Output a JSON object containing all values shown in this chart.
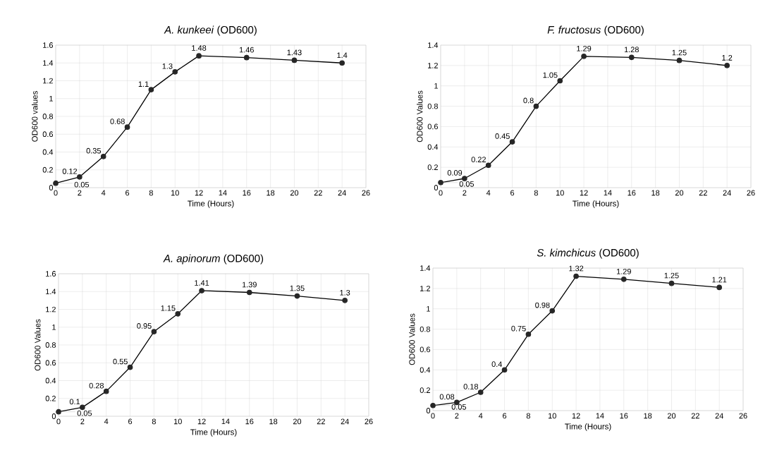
{
  "chart_data": [
    {
      "type": "line",
      "title": "*A. kunkeei* (OD600)",
      "xlabel": "Time (Hours)",
      "ylabel": "OD600 values",
      "x": [
        0,
        2,
        4,
        6,
        8,
        10,
        12,
        16,
        20,
        24
      ],
      "values": [
        0.05,
        0.12,
        0.35,
        0.68,
        1.1,
        1.3,
        1.48,
        1.46,
        1.43,
        1.4
      ],
      "color": "#262626",
      "xlim": [
        0,
        26
      ],
      "xticks": [
        0,
        2,
        4,
        6,
        8,
        10,
        12,
        14,
        16,
        18,
        20,
        22,
        24,
        26
      ],
      "ylim": [
        0,
        1.6
      ],
      "yticks": [
        0,
        0.2,
        0.4,
        0.6,
        0.8,
        1,
        1.2,
        1.4,
        1.6
      ],
      "grid": true,
      "marker": "circle",
      "line_style": "solid",
      "data_labels": true
    },
    {
      "type": "line",
      "title": "*F. fructosus* (OD600)",
      "xlabel": "Time (Hours)",
      "ylabel": "OD600 Values",
      "x": [
        0,
        2,
        4,
        6,
        8,
        10,
        12,
        16,
        20,
        24
      ],
      "values": [
        0.05,
        0.09,
        0.22,
        0.45,
        0.8,
        1.05,
        1.29,
        1.28,
        1.25,
        1.2
      ],
      "color": "#262626",
      "xlim": [
        0,
        26
      ],
      "xticks": [
        0,
        2,
        4,
        6,
        8,
        10,
        12,
        14,
        16,
        18,
        20,
        22,
        24,
        26
      ],
      "ylim": [
        0,
        1.4
      ],
      "yticks": [
        0,
        0.2,
        0.4,
        0.6,
        0.8,
        1,
        1.2,
        1.4
      ],
      "grid": true,
      "marker": "circle",
      "line_style": "solid",
      "data_labels": true
    },
    {
      "type": "line",
      "title": "*A. apinorum* (OD600)",
      "xlabel": "Time (Hours)",
      "ylabel": "OD600 Values",
      "x": [
        0,
        2,
        4,
        6,
        8,
        10,
        12,
        16,
        20,
        24
      ],
      "values": [
        0.05,
        0.1,
        0.28,
        0.55,
        0.95,
        1.15,
        1.41,
        1.39,
        1.35,
        1.3
      ],
      "color": "#262626",
      "xlim": [
        0,
        26
      ],
      "xticks": [
        0,
        2,
        4,
        6,
        8,
        10,
        12,
        14,
        16,
        18,
        20,
        22,
        24,
        26
      ],
      "ylim": [
        0,
        1.6
      ],
      "yticks": [
        0,
        0.2,
        0.4,
        0.6,
        0.8,
        1,
        1.2,
        1.4,
        1.6
      ],
      "grid": true,
      "marker": "circle",
      "line_style": "solid",
      "data_labels": true
    },
    {
      "type": "line",
      "title": "*S. kimchicus* (OD600)",
      "xlabel": "Time (Hours)",
      "ylabel": "OD600 Values",
      "x": [
        0,
        2,
        4,
        6,
        8,
        10,
        12,
        16,
        20,
        24
      ],
      "values": [
        0.05,
        0.08,
        0.18,
        0.4,
        0.75,
        0.98,
        1.32,
        1.29,
        1.25,
        1.21
      ],
      "color": "#262626",
      "xlim": [
        0,
        26
      ],
      "xticks": [
        0,
        2,
        4,
        6,
        8,
        10,
        12,
        14,
        16,
        18,
        20,
        22,
        24,
        26
      ],
      "ylim": [
        0,
        1.4
      ],
      "yticks": [
        0,
        0.2,
        0.4,
        0.6,
        0.8,
        1,
        1.2,
        1.4
      ],
      "grid": true,
      "marker": "circle",
      "line_style": "solid",
      "data_labels": true
    }
  ]
}
